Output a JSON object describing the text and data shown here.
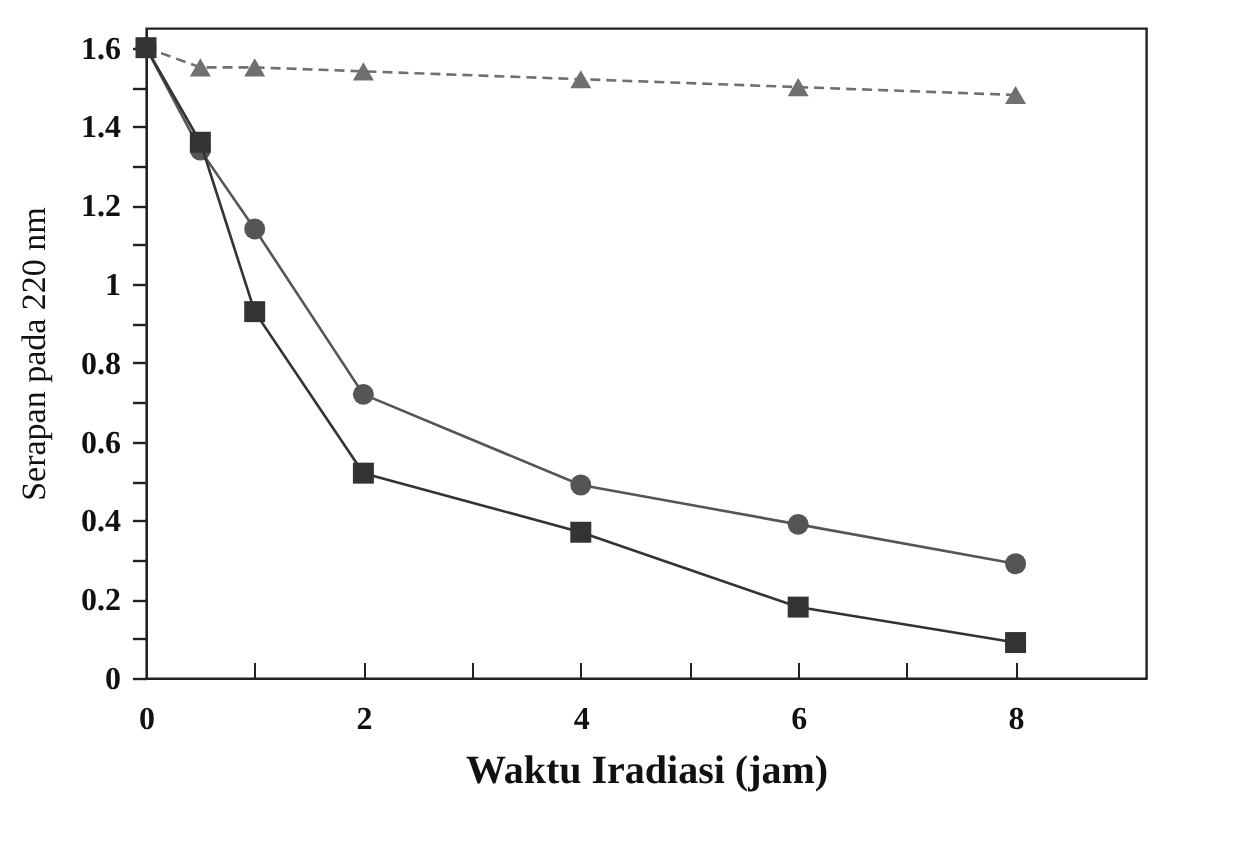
{
  "chart_data": {
    "type": "line",
    "xlabel": "Waktu Iradiasi (jam)",
    "ylabel": "Serapan pada 220 nm",
    "x": [
      0,
      0.5,
      1,
      2,
      4,
      6,
      8
    ],
    "series": [
      {
        "color": "#707070",
        "marker": "triangle",
        "line_style": "dashed",
        "values": [
          1.6,
          1.55,
          1.55,
          1.54,
          1.52,
          1.5,
          1.48
        ]
      },
      {
        "color": "#555555",
        "marker": "circle",
        "line_style": "solid",
        "values": [
          1.6,
          1.34,
          1.14,
          0.72,
          0.49,
          0.39,
          0.29
        ]
      },
      {
        "color": "#333333",
        "marker": "square",
        "line_style": "solid",
        "values": [
          1.6,
          1.36,
          0.93,
          0.52,
          0.37,
          0.18,
          0.09
        ]
      }
    ],
    "xlim": [
      0,
      9.2
    ],
    "xticks": [
      0,
      {
        "value": 1,
        "label": null
      },
      2,
      {
        "value": 3,
        "label": null
      },
      4,
      {
        "value": 5,
        "label": null
      },
      6,
      {
        "value": 7,
        "label": null
      },
      8
    ],
    "ylim": [
      0,
      1.65
    ],
    "yticks": [
      0,
      {
        "value": 0.1,
        "label": null
      },
      0.2,
      {
        "value": 0.3,
        "label": null
      },
      0.4,
      {
        "value": 0.5,
        "label": null
      },
      0.6,
      {
        "value": 0.7,
        "label": null
      },
      0.8,
      {
        "value": 0.9,
        "label": null
      },
      1,
      {
        "value": 1.1,
        "label": null
      },
      1.2,
      {
        "value": 1.3,
        "label": null
      },
      1.4,
      {
        "value": 1.5,
        "label": null
      },
      1.6
    ],
    "grid": false
  }
}
